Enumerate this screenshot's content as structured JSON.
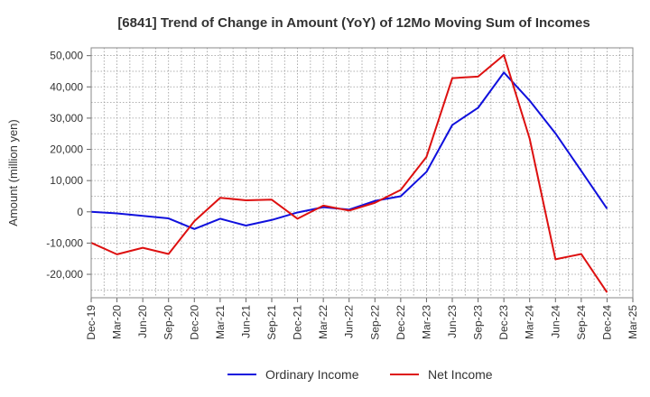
{
  "chart_data": {
    "type": "line",
    "title": "[6841]  Trend of Change in Amount (YoY) of 12Mo Moving Sum of Incomes",
    "xlabel": "",
    "ylabel": "Amount (million yen)",
    "ylim": [
      -27500,
      52500
    ],
    "yticks": [
      -20000,
      -10000,
      0,
      10000,
      20000,
      30000,
      40000,
      50000
    ],
    "ytick_labels": [
      "-20,000",
      "-10,000",
      "0",
      "10,000",
      "20,000",
      "30,000",
      "40,000",
      "50,000"
    ],
    "categories": [
      "Dec-19",
      "Mar-20",
      "Jun-20",
      "Sep-20",
      "Dec-20",
      "Mar-21",
      "Jun-21",
      "Sep-21",
      "Dec-21",
      "Mar-22",
      "Jun-22",
      "Sep-22",
      "Dec-22",
      "Mar-23",
      "Jun-23",
      "Sep-23",
      "Dec-23",
      "Mar-24",
      "Jun-24",
      "Sep-24",
      "Dec-24",
      "Mar-25"
    ],
    "grid": true,
    "legend_position": "bottom-center",
    "series": [
      {
        "name": "Ordinary Income",
        "color": "#1010dd",
        "values": [
          0,
          -500,
          -1300,
          -2100,
          -5500,
          -2200,
          -4400,
          -2600,
          -200,
          1500,
          700,
          3500,
          5000,
          12800,
          27800,
          33300,
          44600,
          35600,
          25100,
          13100,
          1000,
          null
        ]
      },
      {
        "name": "Net Income",
        "color": "#dd1010",
        "values": [
          -9900,
          -13600,
          -11500,
          -13500,
          -3000,
          4500,
          3700,
          3900,
          -2200,
          2000,
          400,
          2900,
          7000,
          17600,
          42800,
          43300,
          50200,
          23400,
          -15200,
          -13500,
          -25800,
          null
        ]
      }
    ]
  }
}
